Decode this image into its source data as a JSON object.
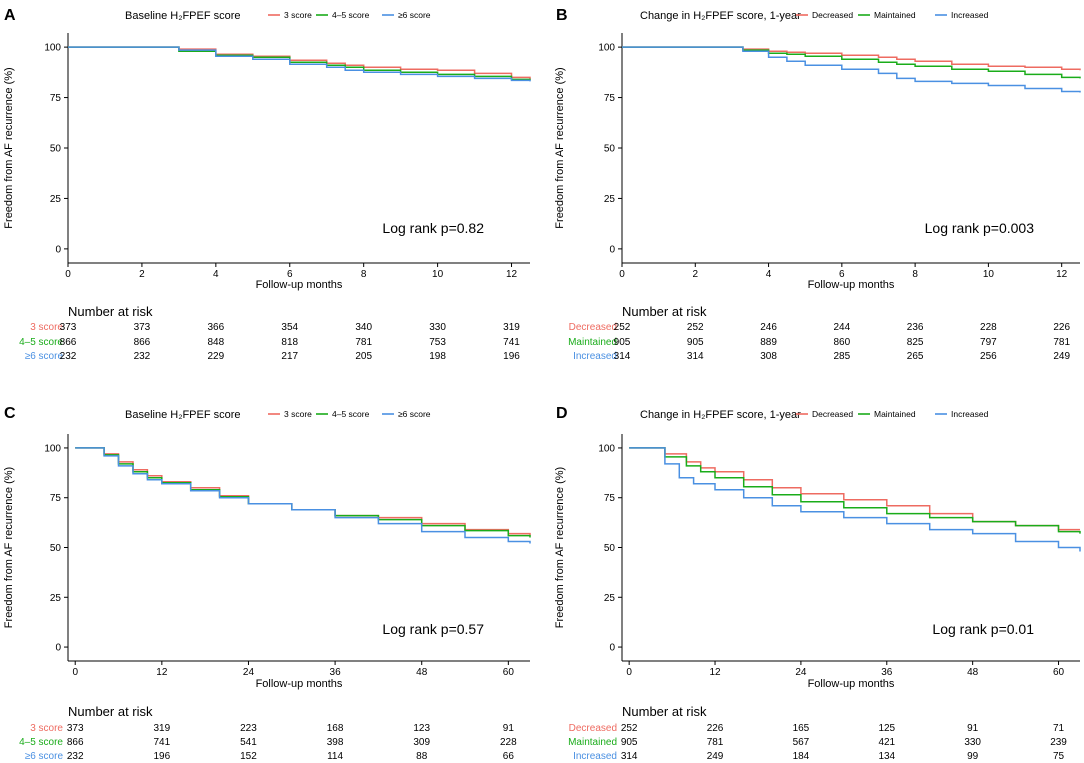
{
  "colors": {
    "red": "#ee6b61",
    "green": "#1aac1a",
    "blue": "#4a90e2",
    "axis": "#000000",
    "text": "#000000"
  },
  "risk_header": "Number at risk",
  "chart_data": [
    {
      "type": "line",
      "panel": "A",
      "legend_title": "Baseline H₂FPEF score",
      "xlabel": "Follow-up months",
      "ylabel": "Freedom from AF recurrence (%)",
      "xlim": [
        0,
        12.5
      ],
      "ylim": [
        0,
        100
      ],
      "xticks": [
        0,
        2,
        4,
        6,
        8,
        10,
        12
      ],
      "yticks": [
        0,
        25,
        50,
        75,
        100
      ],
      "annotation": "Log rank p=0.82",
      "series": [
        {
          "name": "3 score",
          "color": "red",
          "points": [
            [
              0,
              100
            ],
            [
              3,
              100
            ],
            [
              3,
              99
            ],
            [
              4,
              98
            ],
            [
              4,
              96.5
            ],
            [
              5,
              95.5
            ],
            [
              6,
              94.5
            ],
            [
              6,
              93.5
            ],
            [
              7,
              92
            ],
            [
              7.5,
              91
            ],
            [
              8,
              90
            ],
            [
              9,
              89
            ],
            [
              10,
              88.5
            ],
            [
              11,
              87
            ],
            [
              12,
              85
            ],
            [
              12.5,
              84
            ]
          ]
        },
        {
          "name": "4–5 score",
          "color": "green",
          "points": [
            [
              0,
              100
            ],
            [
              3,
              100
            ],
            [
              3,
              98
            ],
            [
              4,
              97
            ],
            [
              4,
              96
            ],
            [
              5,
              95
            ],
            [
              6,
              93.5
            ],
            [
              6,
              92.5
            ],
            [
              7,
              91
            ],
            [
              7.5,
              90
            ],
            [
              8,
              88.5
            ],
            [
              9,
              87.5
            ],
            [
              10,
              86.5
            ],
            [
              11,
              85.5
            ],
            [
              12,
              84
            ],
            [
              12.5,
              83.5
            ]
          ]
        },
        {
          "name": "≥6 score",
          "color": "blue",
          "points": [
            [
              0,
              100
            ],
            [
              3,
              100
            ],
            [
              3,
              98.5
            ],
            [
              4,
              97.5
            ],
            [
              4,
              95.5
            ],
            [
              5,
              94
            ],
            [
              6,
              92.5
            ],
            [
              6,
              91.5
            ],
            [
              7,
              90
            ],
            [
              7.5,
              88.5
            ],
            [
              8,
              87.5
            ],
            [
              9,
              86.5
            ],
            [
              10,
              85.5
            ],
            [
              11,
              84.5
            ],
            [
              12,
              83.5
            ],
            [
              12.5,
              83
            ]
          ]
        }
      ],
      "risk": {
        "rows": [
          {
            "label": "3 score",
            "color": "red",
            "values": [
              373,
              373,
              366,
              354,
              340,
              330,
              319
            ]
          },
          {
            "label": "4–5 score",
            "color": "green",
            "values": [
              866,
              866,
              848,
              818,
              781,
              753,
              741
            ]
          },
          {
            "label": "≥6 score",
            "color": "blue",
            "values": [
              232,
              232,
              229,
              217,
              205,
              198,
              196
            ]
          }
        ]
      }
    },
    {
      "type": "line",
      "panel": "B",
      "legend_title": "Change in H₂FPEF score, 1-year",
      "xlabel": "Follow-up months",
      "ylabel": "Freedom from AF recurrence (%)",
      "xlim": [
        0,
        12.5
      ],
      "ylim": [
        0,
        100
      ],
      "xticks": [
        0,
        2,
        4,
        6,
        8,
        10,
        12
      ],
      "yticks": [
        0,
        25,
        50,
        75,
        100
      ],
      "annotation": "Log rank p=0.003",
      "series": [
        {
          "name": "Decreased",
          "color": "red",
          "points": [
            [
              0,
              100
            ],
            [
              3,
              100
            ],
            [
              3.3,
              99
            ],
            [
              4,
              98
            ],
            [
              4.5,
              97.5
            ],
            [
              5,
              97
            ],
            [
              6,
              96
            ],
            [
              7,
              95
            ],
            [
              7.5,
              94
            ],
            [
              8,
              93
            ],
            [
              9,
              91.5
            ],
            [
              10,
              90.5
            ],
            [
              11,
              90
            ],
            [
              12,
              89
            ],
            [
              12.5,
              88.5
            ]
          ]
        },
        {
          "name": "Maintained",
          "color": "green",
          "points": [
            [
              0,
              100
            ],
            [
              3,
              100
            ],
            [
              3.3,
              98.5
            ],
            [
              4,
              97
            ],
            [
              4.5,
              96.5
            ],
            [
              5,
              95.5
            ],
            [
              6,
              94
            ],
            [
              7,
              92.5
            ],
            [
              7.5,
              91.5
            ],
            [
              8,
              90.5
            ],
            [
              9,
              89
            ],
            [
              10,
              88
            ],
            [
              11,
              86.5
            ],
            [
              12,
              85
            ],
            [
              12.5,
              84.5
            ]
          ]
        },
        {
          "name": "Increased",
          "color": "blue",
          "points": [
            [
              0,
              100
            ],
            [
              3,
              100
            ],
            [
              3.3,
              98
            ],
            [
              4,
              95
            ],
            [
              4.5,
              93
            ],
            [
              5,
              91
            ],
            [
              6,
              89
            ],
            [
              7,
              87
            ],
            [
              7.5,
              84.5
            ],
            [
              8,
              83
            ],
            [
              9,
              82
            ],
            [
              10,
              81
            ],
            [
              11,
              79.5
            ],
            [
              12,
              78
            ],
            [
              12.5,
              77.5
            ]
          ]
        }
      ],
      "risk": {
        "rows": [
          {
            "label": "Decreased",
            "color": "red",
            "values": [
              252,
              252,
              246,
              244,
              236,
              228,
              226
            ]
          },
          {
            "label": "Maintained",
            "color": "green",
            "values": [
              905,
              905,
              889,
              860,
              825,
              797,
              781
            ]
          },
          {
            "label": "Increased",
            "color": "blue",
            "values": [
              314,
              314,
              308,
              285,
              265,
              256,
              249
            ]
          }
        ]
      }
    },
    {
      "type": "line",
      "panel": "C",
      "legend_title": "Baseline H₂FPEF score",
      "xlabel": "Follow-up months",
      "ylabel": "Freedom from AF recurrence (%)",
      "xlim": [
        -1,
        63
      ],
      "ylim": [
        0,
        100
      ],
      "xticks": [
        0,
        12,
        24,
        36,
        48,
        60
      ],
      "yticks": [
        0,
        25,
        50,
        75,
        100
      ],
      "annotation": "Log rank p=0.57",
      "series": [
        {
          "name": "3 score",
          "color": "red",
          "points": [
            [
              0,
              100
            ],
            [
              3,
              100
            ],
            [
              4,
              97
            ],
            [
              6,
              93
            ],
            [
              8,
              89
            ],
            [
              10,
              86
            ],
            [
              12,
              83
            ],
            [
              16,
              80
            ],
            [
              20,
              76
            ],
            [
              24,
              72
            ],
            [
              30,
              69
            ],
            [
              36,
              66
            ],
            [
              42,
              65
            ],
            [
              48,
              62
            ],
            [
              54,
              59
            ],
            [
              60,
              57
            ],
            [
              63,
              56
            ]
          ]
        },
        {
          "name": "4–5 score",
          "color": "green",
          "points": [
            [
              0,
              100
            ],
            [
              3,
              100
            ],
            [
              4,
              96.5
            ],
            [
              6,
              92
            ],
            [
              8,
              88
            ],
            [
              10,
              85
            ],
            [
              12,
              82.5
            ],
            [
              16,
              79
            ],
            [
              20,
              75.5
            ],
            [
              24,
              72
            ],
            [
              30,
              69
            ],
            [
              36,
              66
            ],
            [
              42,
              64
            ],
            [
              48,
              61
            ],
            [
              54,
              58.5
            ],
            [
              60,
              56
            ],
            [
              63,
              55
            ]
          ]
        },
        {
          "name": "≥6 score",
          "color": "blue",
          "points": [
            [
              0,
              100
            ],
            [
              3,
              100
            ],
            [
              4,
              96
            ],
            [
              6,
              91
            ],
            [
              8,
              87
            ],
            [
              10,
              84
            ],
            [
              12,
              82
            ],
            [
              16,
              78.5
            ],
            [
              20,
              75
            ],
            [
              24,
              72
            ],
            [
              30,
              69
            ],
            [
              36,
              65
            ],
            [
              42,
              62
            ],
            [
              48,
              58
            ],
            [
              54,
              55
            ],
            [
              60,
              53
            ],
            [
              63,
              52
            ]
          ]
        }
      ],
      "risk": {
        "rows": [
          {
            "label": "3 score",
            "color": "red",
            "values": [
              373,
              319,
              223,
              168,
              123,
              91
            ]
          },
          {
            "label": "4–5 score",
            "color": "green",
            "values": [
              866,
              741,
              541,
              398,
              309,
              228
            ]
          },
          {
            "label": "≥6 score",
            "color": "blue",
            "values": [
              232,
              196,
              152,
              114,
              88,
              66
            ]
          }
        ]
      }
    },
    {
      "type": "line",
      "panel": "D",
      "legend_title": "Change in H₂FPEF score, 1-year",
      "xlabel": "Follow-up months",
      "ylabel": "Freedom from AF recurrence (%)",
      "xlim": [
        -1,
        63
      ],
      "ylim": [
        0,
        100
      ],
      "xticks": [
        0,
        12,
        24,
        36,
        48,
        60
      ],
      "yticks": [
        0,
        25,
        50,
        75,
        100
      ],
      "annotation": "Log rank p=0.01",
      "series": [
        {
          "name": "Decreased",
          "color": "red",
          "points": [
            [
              0,
              100
            ],
            [
              3,
              100
            ],
            [
              5,
              97
            ],
            [
              8,
              93
            ],
            [
              10,
              90
            ],
            [
              12,
              88
            ],
            [
              16,
              84
            ],
            [
              20,
              80
            ],
            [
              24,
              77
            ],
            [
              30,
              74
            ],
            [
              36,
              71
            ],
            [
              42,
              67
            ],
            [
              48,
              63
            ],
            [
              54,
              61
            ],
            [
              60,
              59
            ],
            [
              63,
              59
            ]
          ]
        },
        {
          "name": "Maintained",
          "color": "green",
          "points": [
            [
              0,
              100
            ],
            [
              3,
              100
            ],
            [
              5,
              95.5
            ],
            [
              8,
              91
            ],
            [
              10,
              88
            ],
            [
              12,
              85
            ],
            [
              16,
              80.5
            ],
            [
              20,
              76.5
            ],
            [
              24,
              73
            ],
            [
              30,
              70
            ],
            [
              36,
              67
            ],
            [
              42,
              65
            ],
            [
              48,
              63
            ],
            [
              54,
              61
            ],
            [
              60,
              58
            ],
            [
              63,
              57
            ]
          ]
        },
        {
          "name": "Increased",
          "color": "blue",
          "points": [
            [
              0,
              100
            ],
            [
              3,
              100
            ],
            [
              5,
              92
            ],
            [
              7,
              85
            ],
            [
              9,
              82
            ],
            [
              12,
              79
            ],
            [
              16,
              75
            ],
            [
              20,
              71
            ],
            [
              24,
              68
            ],
            [
              30,
              65
            ],
            [
              36,
              62
            ],
            [
              42,
              59
            ],
            [
              48,
              57
            ],
            [
              54,
              53
            ],
            [
              60,
              50
            ],
            [
              63,
              48
            ]
          ]
        }
      ],
      "risk": {
        "rows": [
          {
            "label": "Decreased",
            "color": "red",
            "values": [
              252,
              226,
              165,
              125,
              91,
              71
            ]
          },
          {
            "label": "Maintained",
            "color": "green",
            "values": [
              905,
              781,
              567,
              421,
              330,
              239
            ]
          },
          {
            "label": "Increased",
            "color": "blue",
            "values": [
              314,
              249,
              184,
              134,
              99,
              75
            ]
          }
        ]
      }
    }
  ]
}
